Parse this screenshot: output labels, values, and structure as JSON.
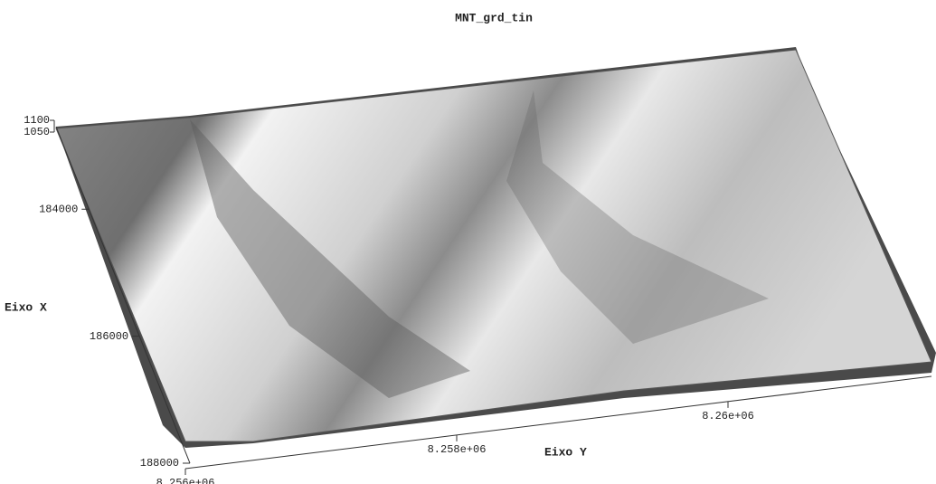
{
  "chart_data": {
    "type": "surface",
    "title": "MNT_grd_tin",
    "xlabel": "Eixo X",
    "ylabel": "Eixo Y",
    "xlim": [
      182700,
      188000
    ],
    "xticks": [
      184000,
      186000,
      188000
    ],
    "ylim": [
      8256000,
      8261500
    ],
    "yticks": [
      {
        "value": 8256000,
        "label": "8.256e+06"
      },
      {
        "value": 8258000,
        "label": "8.258e+06"
      },
      {
        "value": 8260000,
        "label": "8.26e+06"
      }
    ],
    "zlim": [
      1050,
      1100
    ],
    "zticks": [
      1050,
      1100
    ]
  }
}
